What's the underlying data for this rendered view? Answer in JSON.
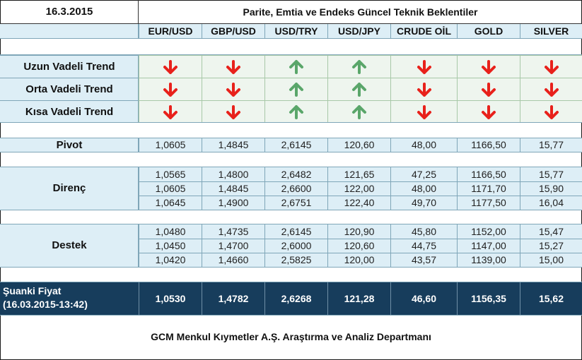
{
  "header": {
    "date": "16.3.2015",
    "title": "Parite, Emtia ve Endeks Güncel Teknik Beklentiler"
  },
  "columns": [
    "EUR/USD",
    "GBP/USD",
    "USD/TRY",
    "USD/JPY",
    "CRUDE OİL",
    "GOLD",
    "SILVER"
  ],
  "trends": [
    {
      "label": "Uzun Vadeli Trend",
      "directions": [
        "down",
        "down",
        "up",
        "up",
        "down",
        "down",
        "down"
      ]
    },
    {
      "label": "Orta Vadeli Trend",
      "directions": [
        "down",
        "down",
        "up",
        "up",
        "down",
        "down",
        "down"
      ]
    },
    {
      "label": "Kısa Vadeli Trend",
      "directions": [
        "down",
        "down",
        "up",
        "up",
        "down",
        "down",
        "down"
      ]
    }
  ],
  "pivot": {
    "label": "Pivot",
    "values": [
      "1,0605",
      "1,4845",
      "2,6145",
      "120,60",
      "48,00",
      "1166,50",
      "15,77"
    ]
  },
  "direnc": {
    "label": "Direnç",
    "rows": [
      [
        "1,0565",
        "1,4800",
        "2,6482",
        "121,65",
        "47,25",
        "1166,50",
        "15,77"
      ],
      [
        "1,0605",
        "1,4845",
        "2,6600",
        "122,00",
        "48,00",
        "1171,70",
        "15,90"
      ],
      [
        "1,0645",
        "1,4900",
        "2,6751",
        "122,40",
        "49,70",
        "1177,50",
        "16,04"
      ]
    ]
  },
  "destek": {
    "label": "Destek",
    "rows": [
      [
        "1,0480",
        "1,4735",
        "2,6145",
        "120,90",
        "45,80",
        "1152,00",
        "15,47"
      ],
      [
        "1,0450",
        "1,4700",
        "2,6000",
        "120,60",
        "44,75",
        "1147,00",
        "15,27"
      ],
      [
        "1,0420",
        "1,4660",
        "2,5825",
        "120,00",
        "43,57",
        "1139,00",
        "15,00"
      ]
    ]
  },
  "current": {
    "label": "Şuanki Fiyat",
    "timestamp": "(16.03.2015-13:42)",
    "values": [
      "1,0530",
      "1,4782",
      "2,6268",
      "121,28",
      "46,60",
      "1156,35",
      "15,62"
    ]
  },
  "footer": {
    "text": "GCM Menkul Kıymetler A.Ş. Araştırma ve Analiz Departmanı"
  },
  "colors": {
    "down": "#e8211b",
    "up": "#5aa66a",
    "dark_band": "#173d5c",
    "light": "#ddeef6"
  }
}
